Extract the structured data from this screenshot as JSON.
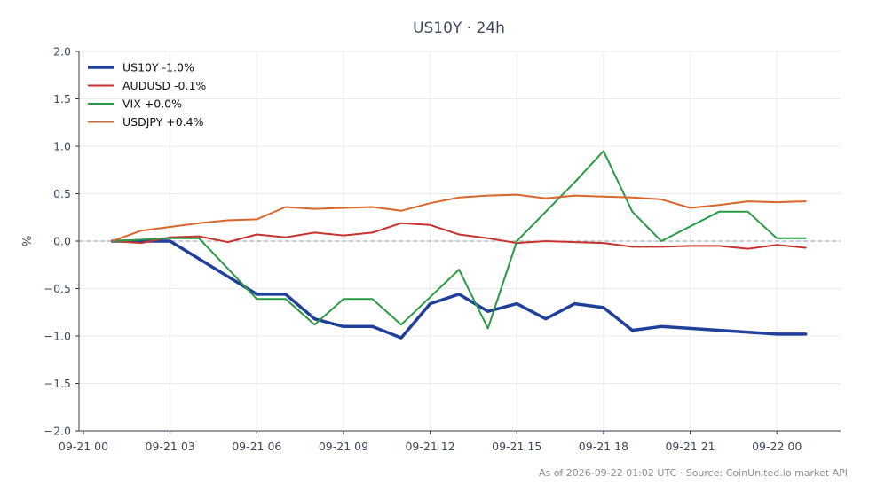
{
  "chart_data": {
    "type": "line",
    "title": "US10Y · 24h",
    "ylabel": "%",
    "xlabel": "",
    "ylim": [
      -2.0,
      2.0
    ],
    "xlim": [
      0,
      25
    ],
    "yticks": [
      -2.0,
      -1.5,
      -1.0,
      -0.5,
      0.0,
      0.5,
      1.0,
      1.5,
      2.0
    ],
    "xticks": [
      {
        "hour": 0,
        "label": "09-21 00"
      },
      {
        "hour": 3,
        "label": "09-21 03"
      },
      {
        "hour": 6,
        "label": "09-21 06"
      },
      {
        "hour": 9,
        "label": "09-21 09"
      },
      {
        "hour": 12,
        "label": "09-21 12"
      },
      {
        "hour": 15,
        "label": "09-21 15"
      },
      {
        "hour": 18,
        "label": "09-21 18"
      },
      {
        "hour": 21,
        "label": "09-21 21"
      },
      {
        "hour": 24,
        "label": "09-22 00"
      }
    ],
    "grid": true,
    "legend_position": "top-left",
    "reference_line": 0.0,
    "x_hours": [
      1,
      2,
      3,
      4,
      5,
      6,
      7,
      8,
      9,
      10,
      11,
      12,
      13,
      14,
      15,
      16,
      17,
      18,
      19,
      20,
      21,
      22,
      23,
      24,
      25
    ],
    "series": [
      {
        "name": "US10Y -1.0%",
        "color": "#1f3f9b",
        "width": 3.5,
        "x": [
          1,
          2,
          3,
          6,
          7,
          8,
          9,
          10,
          11,
          12,
          13,
          14,
          15,
          16,
          17,
          18,
          19,
          20,
          24,
          25
        ],
        "values": [
          0.0,
          0.0,
          0.0,
          -0.56,
          -0.56,
          -0.82,
          -0.9,
          -0.9,
          -1.02,
          -0.66,
          -0.56,
          -0.74,
          -0.66,
          -0.82,
          -0.66,
          -0.7,
          -0.94,
          -0.9,
          -0.98,
          -0.98
        ]
      },
      {
        "name": "AUDUSD -0.1%",
        "color": "#c8332f",
        "width": 2,
        "x": [
          1,
          2,
          3,
          4,
          5,
          6,
          7,
          8,
          9,
          10,
          11,
          12,
          13,
          14,
          15,
          16,
          17,
          18,
          19,
          20,
          21,
          22,
          23,
          24,
          25
        ],
        "values": [
          0.0,
          -0.02,
          0.04,
          0.05,
          -0.01,
          0.07,
          0.04,
          0.09,
          0.06,
          0.09,
          0.19,
          0.17,
          0.07,
          0.03,
          -0.02,
          0.0,
          -0.01,
          -0.02,
          -0.06,
          -0.06,
          -0.05,
          -0.05,
          -0.08,
          -0.04,
          -0.07
        ]
      },
      {
        "name": "VIX +0.0%",
        "color": "#2a9a45",
        "width": 2,
        "x": [
          1,
          3,
          4,
          6,
          7,
          8,
          9,
          10,
          11,
          13,
          14,
          15,
          17,
          18,
          19,
          20,
          22,
          23,
          24,
          25
        ],
        "values": [
          0.0,
          0.03,
          0.03,
          -0.61,
          -0.61,
          -0.88,
          -0.61,
          -0.61,
          -0.88,
          -0.3,
          -0.92,
          0.0,
          0.62,
          0.95,
          0.31,
          0.0,
          0.31,
          0.31,
          0.03,
          0.03
        ]
      },
      {
        "name": "USDJPY +0.4%",
        "color": "#d9662a",
        "width": 2,
        "x": [
          1,
          2,
          3,
          4,
          5,
          6,
          7,
          8,
          9,
          10,
          11,
          12,
          13,
          14,
          15,
          16,
          17,
          18,
          19,
          20,
          21,
          22,
          23,
          24,
          25
        ],
        "values": [
          0.0,
          0.11,
          0.15,
          0.19,
          0.22,
          0.23,
          0.36,
          0.34,
          0.35,
          0.36,
          0.32,
          0.4,
          0.46,
          0.48,
          0.49,
          0.45,
          0.48,
          0.47,
          0.46,
          0.44,
          0.35,
          0.38,
          0.42,
          0.41,
          0.42
        ]
      }
    ]
  },
  "footer": "As of 2026-09-22 01:02 UTC · Source: CoinUnited.io market API"
}
